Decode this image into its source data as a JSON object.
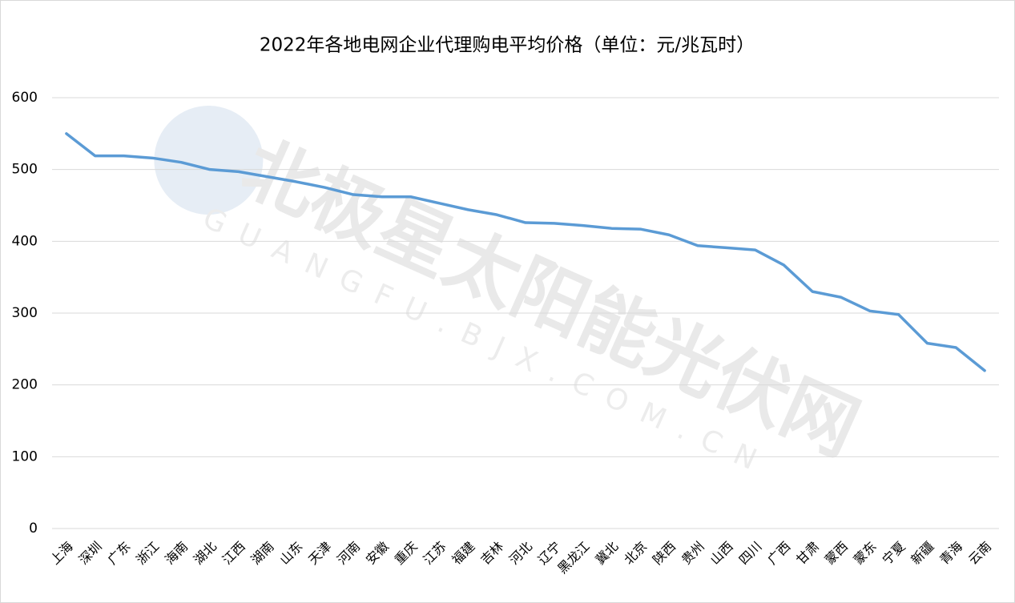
{
  "chart_data": {
    "type": "line",
    "title": "2022年各地电网企业代理购电平均价格（单位：元/兆瓦时）",
    "categories": [
      "上海",
      "深圳",
      "广东",
      "浙江",
      "海南",
      "湖北",
      "江西",
      "湖南",
      "山东",
      "天津",
      "河南",
      "安徽",
      "重庆",
      "江苏",
      "福建",
      "吉林",
      "河北",
      "辽宁",
      "黑龙江",
      "冀北",
      "北京",
      "陕西",
      "贵州",
      "山西",
      "四川",
      "广西",
      "甘肃",
      "蒙西",
      "蒙东",
      "宁夏",
      "新疆",
      "青海",
      "云南"
    ],
    "series": [
      {
        "name": "代理购电平均价格",
        "color": "#5b9bd5",
        "values": [
          550,
          519,
          519,
          516,
          510,
          500,
          497,
          490,
          483,
          475,
          465,
          462,
          462,
          453,
          444,
          437,
          426,
          425,
          422,
          418,
          417,
          409,
          394,
          391,
          388,
          367,
          330,
          322,
          303,
          298,
          258,
          252,
          220
        ]
      }
    ],
    "ylim": [
      0,
      600
    ],
    "yticks": [
      0,
      100,
      200,
      300,
      400,
      500,
      600
    ],
    "grid": true
  },
  "watermark": {
    "title": "北极星太阳能光伏网",
    "subtitle": "GUANGFU.BJX.COM.CN"
  }
}
